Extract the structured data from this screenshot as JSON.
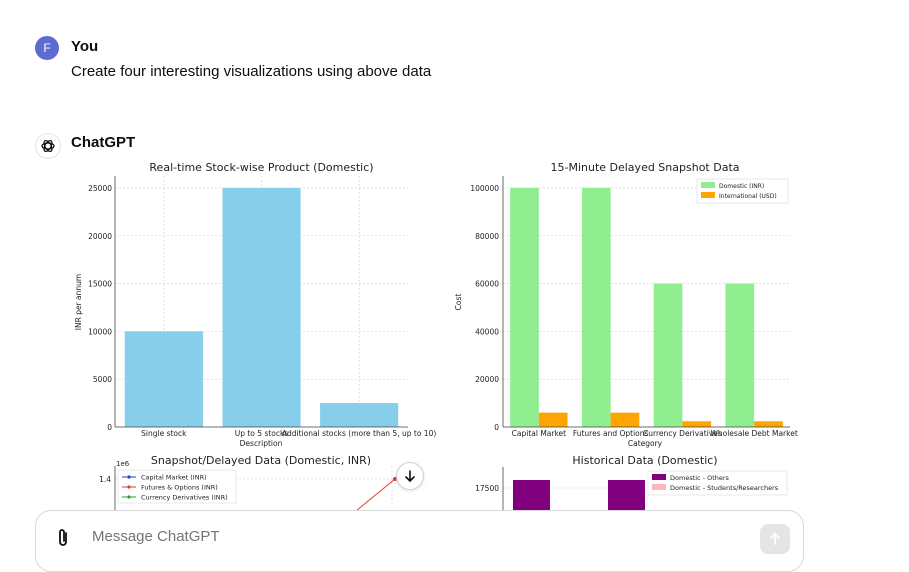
{
  "user": {
    "avatar_letter": "F",
    "name": "You",
    "message": "Create four interesting visualizations using above data"
  },
  "assistant": {
    "name": "ChatGPT"
  },
  "composer": {
    "placeholder": "Message ChatGPT"
  },
  "colors": {
    "skyblue": "#87ceeb",
    "lightgreen": "#90ee90",
    "orange": "#ffa500",
    "purple": "#800080",
    "pink": "#ffb6c1"
  },
  "chart_data": [
    {
      "type": "bar",
      "title": "Real-time Stock-wise Product (Domestic)",
      "xlabel": "Description",
      "ylabel": "INR per annum",
      "categories": [
        "Single stock",
        "Up to 5 stocks",
        "Additional stocks (more than 5, up to 10)"
      ],
      "values": [
        10000,
        25000,
        2500
      ],
      "yticks": [
        "0",
        "5000",
        "10000",
        "15000",
        "20000",
        "25000"
      ],
      "ylim": [
        0,
        26250
      ]
    },
    {
      "type": "bar",
      "title": "15-Minute Delayed Snapshot Data",
      "xlabel": "Category",
      "ylabel": "Cost",
      "categories": [
        "Capital Market",
        "Futures and Options",
        "Currency Derivatives",
        "Wholesale Debt Market"
      ],
      "series": [
        {
          "name": "Domestic (INR)",
          "values": [
            100000,
            100000,
            60000,
            60000
          ]
        },
        {
          "name": "International (USD)",
          "values": [
            6000,
            6000,
            2400,
            2400
          ]
        }
      ],
      "yticks": [
        "0",
        "20000",
        "40000",
        "60000",
        "80000",
        "100000"
      ],
      "ylim": [
        0,
        105000
      ],
      "legend": "top-right"
    },
    {
      "type": "line",
      "title": "Snapshot/Delayed Data (Domestic, INR)",
      "exponent_label": "1e6",
      "yticks": [
        "1.4"
      ],
      "series": [
        {
          "name": "Capital Market (INR)"
        },
        {
          "name": "Futures & Options (INR)"
        },
        {
          "name": "Currency Derivatives (INR)"
        }
      ],
      "legend": "top-left"
    },
    {
      "type": "bar",
      "title": "Historical Data (Domestic)",
      "yticks": [
        "17500"
      ],
      "series": [
        {
          "name": "Domestic - Others"
        },
        {
          "name": "Domestic - Students/Researchers"
        }
      ],
      "legend": "top-right"
    }
  ]
}
